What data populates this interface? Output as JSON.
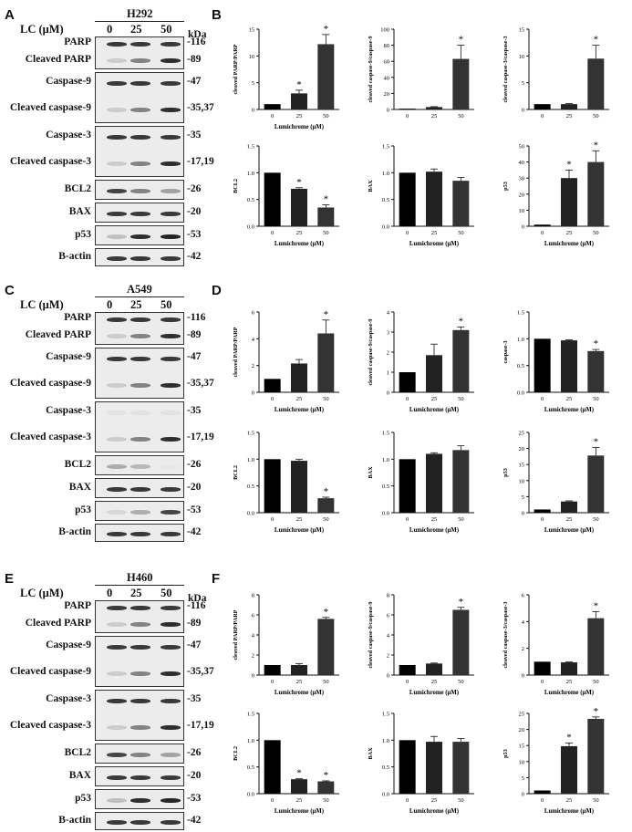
{
  "panels": [
    {
      "id": "A",
      "chart_id": "B",
      "cell_line": "H292",
      "conc_header": "LC (μM)",
      "concs": [
        "0",
        "25",
        "50"
      ],
      "kda_header": "kDa",
      "blots": [
        {
          "names": [
            "PARP",
            "Cleaved PARP"
          ],
          "kda": [
            "-116",
            "-89"
          ]
        },
        {
          "names": [
            "Caspase-9",
            "Cleaved caspase-9"
          ],
          "kda": [
            "-47",
            "-35,37"
          ]
        },
        {
          "names": [
            "Caspase-3",
            "Cleaved caspase-3"
          ],
          "kda": [
            "-35",
            "-17,19"
          ]
        },
        {
          "names": [
            "BCL2"
          ],
          "kda": [
            "-26"
          ]
        },
        {
          "names": [
            "BAX"
          ],
          "kda": [
            "-20"
          ]
        },
        {
          "names": [
            "p53"
          ],
          "kda": [
            "-53"
          ]
        },
        {
          "names": [
            "B-actin"
          ],
          "kda": [
            "-42"
          ]
        }
      ]
    },
    {
      "id": "C",
      "chart_id": "D",
      "cell_line": "A549",
      "conc_header": "LC (μM)",
      "concs": [
        "0",
        "25",
        "50"
      ],
      "kda_header": "",
      "blots": [
        {
          "names": [
            "PARP",
            "Cleaved PARP"
          ],
          "kda": [
            "-116",
            "-89"
          ]
        },
        {
          "names": [
            "Caspase-9",
            "Cleaved caspase-9"
          ],
          "kda": [
            "-47",
            "-35,37"
          ]
        },
        {
          "names": [
            "Caspase-3",
            "Cleaved caspase-3"
          ],
          "kda": [
            "-35",
            "-17,19"
          ]
        },
        {
          "names": [
            "BCL2"
          ],
          "kda": [
            "-26"
          ]
        },
        {
          "names": [
            "BAX"
          ],
          "kda": [
            "-20"
          ]
        },
        {
          "names": [
            "p53"
          ],
          "kda": [
            "-53"
          ]
        },
        {
          "names": [
            "B-actin"
          ],
          "kda": [
            "-42"
          ]
        }
      ]
    },
    {
      "id": "E",
      "chart_id": "F",
      "cell_line": "H460",
      "conc_header": "LC (μM)",
      "concs": [
        "0",
        "25",
        "50"
      ],
      "kda_header": "kDa",
      "blots": [
        {
          "names": [
            "PARP",
            "Cleaved PARP"
          ],
          "kda": [
            "-116",
            "-89"
          ]
        },
        {
          "names": [
            "Caspase-9",
            "Cleaved caspase-9"
          ],
          "kda": [
            "-47",
            "-35,37"
          ]
        },
        {
          "names": [
            "Caspase-3",
            "Cleaved caspase-3"
          ],
          "kda": [
            "-35",
            "-17,19"
          ]
        },
        {
          "names": [
            "BCL2"
          ],
          "kda": [
            "-26"
          ]
        },
        {
          "names": [
            "BAX"
          ],
          "kda": [
            "-20"
          ]
        },
        {
          "names": [
            "p53"
          ],
          "kda": [
            "-53"
          ]
        },
        {
          "names": [
            "B-actin"
          ],
          "kda": [
            "-42"
          ]
        }
      ]
    }
  ],
  "chart_data": [
    {
      "panel": "B",
      "type": "bar",
      "categories": [
        "0",
        "25",
        "50"
      ],
      "values": [
        1.0,
        3.0,
        12.2
      ],
      "errors": [
        0,
        0.6,
        1.8
      ],
      "sig": [
        false,
        true,
        true
      ],
      "ylim": [
        0,
        15
      ],
      "yticks": [
        0,
        5,
        10,
        15
      ],
      "ylabel": "cleaved PARP/PARP",
      "xlabel": "Lumichrome (μM)",
      "colors": [
        "#000000",
        "#222222",
        "#333333"
      ]
    },
    {
      "panel": "B",
      "type": "bar",
      "categories": [
        "0",
        "25",
        "50"
      ],
      "values": [
        1.0,
        3.0,
        63.0
      ],
      "errors": [
        0,
        0.5,
        17
      ],
      "sig": [
        false,
        false,
        true
      ],
      "ylim": [
        0,
        100
      ],
      "yticks": [
        0,
        20,
        40,
        60,
        80,
        100
      ],
      "ylabel": "cleaved caspase-9/caspase-9",
      "xlabel": "",
      "colors": [
        "#000000",
        "#222222",
        "#333333"
      ]
    },
    {
      "panel": "B",
      "type": "bar",
      "categories": [
        "0",
        "25",
        "50"
      ],
      "values": [
        1.0,
        1.0,
        9.5
      ],
      "errors": [
        0,
        0.1,
        2.5
      ],
      "sig": [
        false,
        false,
        true
      ],
      "ylim": [
        0,
        15
      ],
      "yticks": [
        0,
        5,
        10,
        15
      ],
      "ylabel": "cleaved caspase-3/caspase-3",
      "xlabel": "",
      "colors": [
        "#000000",
        "#222222",
        "#333333"
      ]
    },
    {
      "panel": "B",
      "type": "bar",
      "categories": [
        "0",
        "25",
        "50"
      ],
      "values": [
        1.0,
        0.7,
        0.35
      ],
      "errors": [
        0,
        0.02,
        0.05
      ],
      "sig": [
        false,
        true,
        true
      ],
      "ylim": [
        0,
        1.5
      ],
      "yticks": [
        0.0,
        0.5,
        1.0,
        1.5
      ],
      "ylabel": "BCL2",
      "xlabel": "Lumichrome (μM)",
      "colors": [
        "#000000",
        "#222222",
        "#333333"
      ]
    },
    {
      "panel": "B",
      "type": "bar",
      "categories": [
        "0",
        "25",
        "50"
      ],
      "values": [
        1.0,
        1.02,
        0.85
      ],
      "errors": [
        0,
        0.05,
        0.06
      ],
      "sig": [
        false,
        false,
        false
      ],
      "ylim": [
        0,
        1.5
      ],
      "yticks": [
        0.0,
        0.5,
        1.0,
        1.5
      ],
      "ylabel": "BAX",
      "xlabel": "Lumichrome (μM)",
      "colors": [
        "#000000",
        "#222222",
        "#333333"
      ]
    },
    {
      "panel": "B",
      "type": "bar",
      "categories": [
        "0",
        "25",
        "50"
      ],
      "values": [
        1.0,
        30.0,
        40.0
      ],
      "errors": [
        0,
        5,
        7
      ],
      "sig": [
        false,
        true,
        true
      ],
      "ylim": [
        0,
        50
      ],
      "yticks": [
        0,
        10,
        20,
        30,
        40,
        50
      ],
      "ylabel": "p53",
      "xlabel": "Lumichrome (μM)",
      "colors": [
        "#000000",
        "#222222",
        "#333333"
      ]
    },
    {
      "panel": "D",
      "type": "bar",
      "categories": [
        "0",
        "25",
        "50"
      ],
      "values": [
        1.0,
        2.15,
        4.4
      ],
      "errors": [
        0,
        0.3,
        1.0
      ],
      "sig": [
        false,
        false,
        true
      ],
      "ylim": [
        0,
        6
      ],
      "yticks": [
        0,
        2,
        4,
        6
      ],
      "ylabel": "cleaved PARP/PARP",
      "xlabel": "Lumichrome (μM)",
      "colors": [
        "#000000",
        "#222222",
        "#333333"
      ]
    },
    {
      "panel": "D",
      "type": "bar",
      "categories": [
        "0",
        "25",
        "50"
      ],
      "values": [
        1.0,
        1.85,
        3.1
      ],
      "errors": [
        0,
        0.55,
        0.15
      ],
      "sig": [
        false,
        false,
        true
      ],
      "ylim": [
        0,
        4
      ],
      "yticks": [
        0,
        1,
        2,
        3,
        4
      ],
      "ylabel": "cleaved caspase-9/caspase-9",
      "xlabel": "Lumichrome (μM)",
      "colors": [
        "#000000",
        "#222222",
        "#333333"
      ]
    },
    {
      "panel": "D",
      "type": "bar",
      "categories": [
        "0",
        "25",
        "50"
      ],
      "values": [
        1.0,
        0.97,
        0.77
      ],
      "errors": [
        0,
        0.01,
        0.03
      ],
      "sig": [
        false,
        false,
        true
      ],
      "ylim": [
        0,
        1.5
      ],
      "yticks": [
        0.0,
        0.5,
        1.0,
        1.5
      ],
      "ylabel": "caspase-3",
      "xlabel": "Lumichrome (μM)",
      "colors": [
        "#000000",
        "#222222",
        "#333333"
      ]
    },
    {
      "panel": "D",
      "type": "bar",
      "categories": [
        "0",
        "25",
        "50"
      ],
      "values": [
        1.0,
        0.97,
        0.27
      ],
      "errors": [
        0,
        0.03,
        0.02
      ],
      "sig": [
        false,
        false,
        true
      ],
      "ylim": [
        0,
        1.5
      ],
      "yticks": [
        0.0,
        0.5,
        1.0,
        1.5
      ],
      "ylabel": "BCL2",
      "xlabel": "Lumichrome (μM)",
      "colors": [
        "#000000",
        "#222222",
        "#333333"
      ]
    },
    {
      "panel": "D",
      "type": "bar",
      "categories": [
        "0",
        "25",
        "50"
      ],
      "values": [
        1.0,
        1.1,
        1.17
      ],
      "errors": [
        0,
        0.02,
        0.08
      ],
      "sig": [
        false,
        false,
        false
      ],
      "ylim": [
        0,
        1.5
      ],
      "yticks": [
        0.0,
        0.5,
        1.0,
        1.5
      ],
      "ylabel": "BAX",
      "xlabel": "Lumichrome (μM)",
      "colors": [
        "#000000",
        "#222222",
        "#333333"
      ]
    },
    {
      "panel": "D",
      "type": "bar",
      "categories": [
        "0",
        "25",
        "50"
      ],
      "values": [
        1.0,
        3.5,
        17.8
      ],
      "errors": [
        0,
        0.2,
        2.5
      ],
      "sig": [
        false,
        false,
        true
      ],
      "ylim": [
        0,
        25
      ],
      "yticks": [
        0,
        5,
        10,
        15,
        20,
        25
      ],
      "ylabel": "p53",
      "xlabel": "Lumichrome (μM)",
      "colors": [
        "#000000",
        "#222222",
        "#333333"
      ]
    },
    {
      "panel": "F",
      "type": "bar",
      "categories": [
        "0",
        "25",
        "50"
      ],
      "values": [
        1.0,
        1.0,
        5.6
      ],
      "errors": [
        0,
        0.15,
        0.15
      ],
      "sig": [
        false,
        false,
        true
      ],
      "ylim": [
        0,
        8
      ],
      "yticks": [
        0,
        2,
        4,
        6,
        8
      ],
      "ylabel": "cleaved PARP/PARP",
      "xlabel": "Lumichrome (μM)",
      "colors": [
        "#000000",
        "#222222",
        "#333333"
      ]
    },
    {
      "panel": "F",
      "type": "bar",
      "categories": [
        "0",
        "25",
        "50"
      ],
      "values": [
        1.0,
        1.15,
        6.5
      ],
      "errors": [
        0,
        0.05,
        0.25
      ],
      "sig": [
        false,
        false,
        true
      ],
      "ylim": [
        0,
        8
      ],
      "yticks": [
        0,
        2,
        4,
        6,
        8
      ],
      "ylabel": "cleaved caspase-9/caspase-9",
      "xlabel": "Lumichrome (μM)",
      "colors": [
        "#000000",
        "#222222",
        "#333333"
      ]
    },
    {
      "panel": "F",
      "type": "bar",
      "categories": [
        "0",
        "25",
        "50"
      ],
      "values": [
        1.0,
        0.95,
        4.25
      ],
      "errors": [
        0,
        0.03,
        0.5
      ],
      "sig": [
        false,
        false,
        true
      ],
      "ylim": [
        0,
        6
      ],
      "yticks": [
        0,
        2,
        4,
        6
      ],
      "ylabel": "cleaved caspase-3/caspase-3",
      "xlabel": "Lumichrome (μM)",
      "colors": [
        "#000000",
        "#222222",
        "#333333"
      ]
    },
    {
      "panel": "F",
      "type": "bar",
      "categories": [
        "0",
        "25",
        "50"
      ],
      "values": [
        1.0,
        0.27,
        0.23
      ],
      "errors": [
        0,
        0.01,
        0.01
      ],
      "sig": [
        false,
        true,
        true
      ],
      "ylim": [
        0,
        1.5
      ],
      "yticks": [
        0.0,
        0.5,
        1.0,
        1.5
      ],
      "ylabel": "BCL2",
      "xlabel": "Lumichrome (μM)",
      "colors": [
        "#000000",
        "#222222",
        "#333333"
      ]
    },
    {
      "panel": "F",
      "type": "bar",
      "categories": [
        "0",
        "25",
        "50"
      ],
      "values": [
        1.0,
        0.97,
        0.97
      ],
      "errors": [
        0,
        0.1,
        0.06
      ],
      "sig": [
        false,
        false,
        false
      ],
      "ylim": [
        0,
        1.5
      ],
      "yticks": [
        0.0,
        0.5,
        1.0,
        1.5
      ],
      "ylabel": "BAX",
      "xlabel": "Lumichrome (μM)",
      "colors": [
        "#000000",
        "#222222",
        "#333333"
      ]
    },
    {
      "panel": "F",
      "type": "bar",
      "categories": [
        "0",
        "25",
        "50"
      ],
      "values": [
        1.0,
        14.8,
        23.3
      ],
      "errors": [
        0,
        1.0,
        0.6
      ],
      "sig": [
        false,
        true,
        true
      ],
      "ylim": [
        0,
        25
      ],
      "yticks": [
        0,
        5,
        10,
        15,
        20,
        25
      ],
      "ylabel": "p53",
      "xlabel": "Lumichrome (μM)",
      "colors": [
        "#000000",
        "#222222",
        "#333333"
      ]
    }
  ]
}
